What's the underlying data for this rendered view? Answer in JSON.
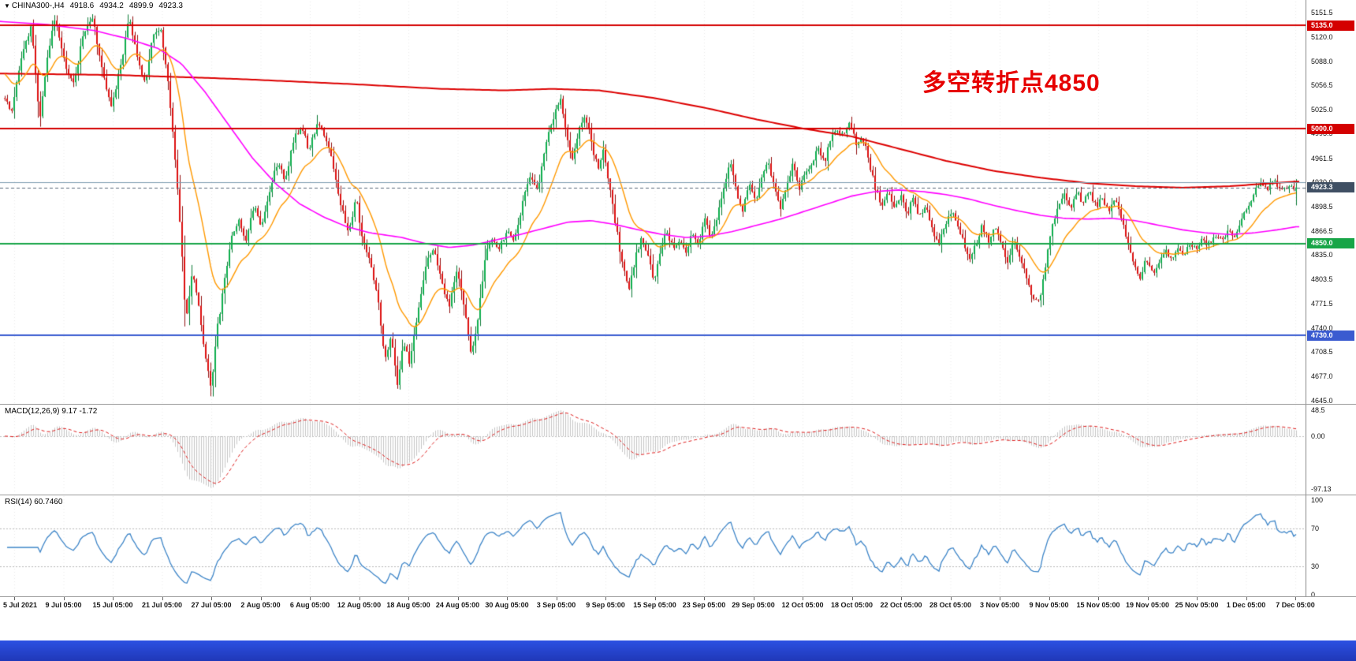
{
  "app": {
    "background": "#ffffff",
    "taskbar_color": "#2b50e2"
  },
  "symbol_info": {
    "marker": "▼",
    "symbol": "CHINA300-,H4",
    "open": "4918.6",
    "high": "4934.2",
    "low": "4899.9",
    "close": "4923.3"
  },
  "annotation": {
    "text": "多空转折点4850",
    "color": "#e60000"
  },
  "chart_data": {
    "type": "candlestick",
    "title": "CHINA300- H4",
    "last_candle": {
      "open": 4918.6,
      "high": 4934.2,
      "low": 4899.9,
      "close": 4923.3
    },
    "y_axis": {
      "min": 4645.0,
      "max": 5151.5,
      "labels": [
        "5151.5",
        "5120.0",
        "5088.0",
        "5056.5",
        "5025.0",
        "4993.5",
        "4961.5",
        "4930.0",
        "4898.5",
        "4866.5",
        "4835.0",
        "4803.5",
        "4771.5",
        "4740.0",
        "4708.5",
        "4677.0",
        "4645.0"
      ]
    },
    "x_axis": {
      "labels": [
        "5 Jul 2021",
        "9 Jul 05:00",
        "15 Jul 05:00",
        "21 Jul 05:00",
        "27 Jul 05:00",
        "2 Aug 05:00",
        "6 Aug 05:00",
        "12 Aug 05:00",
        "18 Aug 05:00",
        "24 Aug 05:00",
        "30 Aug 05:00",
        "3 Sep 05:00",
        "9 Sep 05:00",
        "15 Sep 05:00",
        "23 Sep 05:00",
        "29 Sep 05:00",
        "12 Oct 05:00",
        "18 Oct 05:00",
        "22 Oct 05:00",
        "28 Oct 05:00",
        "3 Nov 05:00",
        "9 Nov 05:00",
        "15 Nov 05:00",
        "19 Nov 05:00",
        "25 Nov 05:00",
        "1 Dec 05:00",
        "7 Dec 05:00"
      ]
    },
    "close_path": [
      [
        0,
        5060
      ],
      [
        14,
        5020
      ],
      [
        28,
        5095
      ],
      [
        40,
        5135
      ],
      [
        50,
        5008
      ],
      [
        60,
        5090
      ],
      [
        70,
        5148
      ],
      [
        82,
        5085
      ],
      [
        94,
        5058
      ],
      [
        106,
        5128
      ],
      [
        118,
        5142
      ],
      [
        130,
        5072
      ],
      [
        142,
        5028
      ],
      [
        154,
        5088
      ],
      [
        164,
        5148
      ],
      [
        174,
        5092
      ],
      [
        184,
        5058
      ],
      [
        194,
        5122
      ],
      [
        204,
        5130
      ],
      [
        212,
        5070
      ],
      [
        220,
        4985
      ],
      [
        228,
        4880
      ],
      [
        236,
        4748
      ],
      [
        244,
        4818
      ],
      [
        252,
        4772
      ],
      [
        260,
        4705
      ],
      [
        268,
        4662
      ],
      [
        276,
        4742
      ],
      [
        284,
        4795
      ],
      [
        292,
        4852
      ],
      [
        302,
        4882
      ],
      [
        312,
        4850
      ],
      [
        322,
        4902
      ],
      [
        332,
        4872
      ],
      [
        342,
        4918
      ],
      [
        352,
        4958
      ],
      [
        362,
        4930
      ],
      [
        372,
        4985
      ],
      [
        382,
        5002
      ],
      [
        392,
        4972
      ],
      [
        402,
        5006
      ],
      [
        412,
        4992
      ],
      [
        422,
        4955
      ],
      [
        432,
        4898
      ],
      [
        442,
        4868
      ],
      [
        452,
        4908
      ],
      [
        460,
        4852
      ],
      [
        468,
        4828
      ],
      [
        478,
        4788
      ],
      [
        488,
        4700
      ],
      [
        496,
        4726
      ],
      [
        504,
        4668
      ],
      [
        512,
        4722
      ],
      [
        520,
        4692
      ],
      [
        530,
        4762
      ],
      [
        540,
        4822
      ],
      [
        550,
        4846
      ],
      [
        560,
        4798
      ],
      [
        570,
        4768
      ],
      [
        580,
        4820
      ],
      [
        590,
        4758
      ],
      [
        598,
        4706
      ],
      [
        606,
        4748
      ],
      [
        614,
        4822
      ],
      [
        622,
        4858
      ],
      [
        632,
        4840
      ],
      [
        642,
        4866
      ],
      [
        652,
        4854
      ],
      [
        662,
        4898
      ],
      [
        672,
        4940
      ],
      [
        682,
        4918
      ],
      [
        692,
        4980
      ],
      [
        702,
        5012
      ],
      [
        710,
        5042
      ],
      [
        718,
        4998
      ],
      [
        726,
        4958
      ],
      [
        734,
        5000
      ],
      [
        742,
        5018
      ],
      [
        750,
        4982
      ],
      [
        758,
        4948
      ],
      [
        766,
        4972
      ],
      [
        774,
        4918
      ],
      [
        782,
        4868
      ],
      [
        790,
        4818
      ],
      [
        798,
        4792
      ],
      [
        806,
        4832
      ],
      [
        814,
        4858
      ],
      [
        822,
        4832
      ],
      [
        830,
        4802
      ],
      [
        838,
        4846
      ],
      [
        846,
        4864
      ],
      [
        854,
        4844
      ],
      [
        862,
        4856
      ],
      [
        870,
        4838
      ],
      [
        878,
        4864
      ],
      [
        886,
        4852
      ],
      [
        894,
        4880
      ],
      [
        902,
        4858
      ],
      [
        910,
        4886
      ],
      [
        918,
        4922
      ],
      [
        926,
        4958
      ],
      [
        934,
        4918
      ],
      [
        942,
        4894
      ],
      [
        950,
        4930
      ],
      [
        958,
        4904
      ],
      [
        966,
        4934
      ],
      [
        974,
        4958
      ],
      [
        982,
        4924
      ],
      [
        990,
        4898
      ],
      [
        998,
        4930
      ],
      [
        1006,
        4954
      ],
      [
        1014,
        4924
      ],
      [
        1022,
        4942
      ],
      [
        1030,
        4956
      ],
      [
        1038,
        4974
      ],
      [
        1046,
        4958
      ],
      [
        1054,
        4986
      ],
      [
        1062,
        5000
      ],
      [
        1070,
        4992
      ],
      [
        1078,
        5012
      ],
      [
        1086,
        4976
      ],
      [
        1094,
        4990
      ],
      [
        1102,
        4958
      ],
      [
        1110,
        4924
      ],
      [
        1118,
        4898
      ],
      [
        1126,
        4920
      ],
      [
        1134,
        4894
      ],
      [
        1142,
        4914
      ],
      [
        1150,
        4888
      ],
      [
        1158,
        4908
      ],
      [
        1166,
        4884
      ],
      [
        1174,
        4898
      ],
      [
        1182,
        4868
      ],
      [
        1190,
        4848
      ],
      [
        1198,
        4870
      ],
      [
        1206,
        4892
      ],
      [
        1214,
        4878
      ],
      [
        1222,
        4852
      ],
      [
        1230,
        4828
      ],
      [
        1238,
        4850
      ],
      [
        1246,
        4874
      ],
      [
        1254,
        4854
      ],
      [
        1262,
        4874
      ],
      [
        1270,
        4848
      ],
      [
        1278,
        4828
      ],
      [
        1286,
        4854
      ],
      [
        1294,
        4834
      ],
      [
        1302,
        4808
      ],
      [
        1310,
        4780
      ],
      [
        1318,
        4772
      ],
      [
        1326,
        4822
      ],
      [
        1334,
        4868
      ],
      [
        1342,
        4898
      ],
      [
        1350,
        4918
      ],
      [
        1358,
        4898
      ],
      [
        1366,
        4918
      ],
      [
        1374,
        4902
      ],
      [
        1382,
        4918
      ],
      [
        1390,
        4898
      ],
      [
        1398,
        4912
      ],
      [
        1406,
        4892
      ],
      [
        1414,
        4908
      ],
      [
        1422,
        4884
      ],
      [
        1430,
        4854
      ],
      [
        1438,
        4824
      ],
      [
        1446,
        4806
      ],
      [
        1454,
        4830
      ],
      [
        1462,
        4812
      ],
      [
        1470,
        4822
      ],
      [
        1478,
        4842
      ],
      [
        1486,
        4826
      ],
      [
        1494,
        4846
      ],
      [
        1502,
        4836
      ],
      [
        1510,
        4852
      ],
      [
        1518,
        4842
      ],
      [
        1526,
        4856
      ],
      [
        1534,
        4848
      ],
      [
        1542,
        4862
      ],
      [
        1550,
        4854
      ],
      [
        1558,
        4870
      ],
      [
        1566,
        4860
      ],
      [
        1574,
        4882
      ],
      [
        1582,
        4898
      ],
      [
        1590,
        4916
      ],
      [
        1598,
        4930
      ],
      [
        1606,
        4920
      ],
      [
        1614,
        4932
      ],
      [
        1622,
        4926
      ],
      [
        1632,
        4923.3
      ]
    ],
    "horizontal_lines": [
      {
        "price": 5135.0,
        "color": "#d40000",
        "width": 2,
        "tag": "5135.0",
        "tag_bg": "#d40000"
      },
      {
        "price": 5000.0,
        "color": "#d40000",
        "width": 2,
        "tag": "5000.0",
        "tag_bg": "#d40000"
      },
      {
        "price": 4930.0,
        "color": "#7c9cb0",
        "width": 1
      },
      {
        "price": 4923.3,
        "color": "#5a6a7a",
        "width": 1,
        "dash": true,
        "tag": "4923.3",
        "tag_bg": "#3f4f63"
      },
      {
        "price": 4850.0,
        "color": "#17a547",
        "width": 2,
        "tag": "4850.0",
        "tag_bg": "#17a547"
      },
      {
        "price": 4730.0,
        "color": "#3a5bd0",
        "width": 2,
        "tag": "4730.0",
        "tag_bg": "#3a5bd0"
      }
    ],
    "moving_averages": [
      {
        "name": "ma-slow",
        "color": "#dd0000",
        "path": [
          [
            0,
            5072
          ],
          [
            150,
            5070
          ],
          [
            300,
            5065
          ],
          [
            450,
            5058
          ],
          [
            560,
            5052
          ],
          [
            640,
            5050
          ],
          [
            700,
            5052
          ],
          [
            760,
            5050
          ],
          [
            830,
            5040
          ],
          [
            900,
            5026
          ],
          [
            960,
            5012
          ],
          [
            1020,
            5000
          ],
          [
            1080,
            4990
          ],
          [
            1140,
            4974
          ],
          [
            1200,
            4958
          ],
          [
            1260,
            4945
          ],
          [
            1320,
            4936
          ],
          [
            1380,
            4929
          ],
          [
            1440,
            4925
          ],
          [
            1500,
            4923
          ],
          [
            1560,
            4925
          ],
          [
            1644,
            4931
          ]
        ]
      },
      {
        "name": "ma-mid",
        "color": "#ff00ff",
        "path": [
          [
            0,
            5140
          ],
          [
            60,
            5136
          ],
          [
            120,
            5128
          ],
          [
            160,
            5118
          ],
          [
            200,
            5105
          ],
          [
            230,
            5085
          ],
          [
            260,
            5048
          ],
          [
            290,
            5005
          ],
          [
            320,
            4962
          ],
          [
            350,
            4928
          ],
          [
            380,
            4902
          ],
          [
            410,
            4885
          ],
          [
            440,
            4872
          ],
          [
            470,
            4864
          ],
          [
            510,
            4858
          ],
          [
            540,
            4850
          ],
          [
            570,
            4845
          ],
          [
            600,
            4848
          ],
          [
            630,
            4855
          ],
          [
            660,
            4862
          ],
          [
            690,
            4870
          ],
          [
            720,
            4878
          ],
          [
            750,
            4880
          ],
          [
            780,
            4875
          ],
          [
            810,
            4868
          ],
          [
            840,
            4862
          ],
          [
            870,
            4858
          ],
          [
            900,
            4860
          ],
          [
            930,
            4866
          ],
          [
            960,
            4874
          ],
          [
            990,
            4882
          ],
          [
            1020,
            4892
          ],
          [
            1050,
            4902
          ],
          [
            1080,
            4912
          ],
          [
            1110,
            4918
          ],
          [
            1140,
            4920
          ],
          [
            1170,
            4918
          ],
          [
            1200,
            4914
          ],
          [
            1230,
            4908
          ],
          [
            1260,
            4900
          ],
          [
            1290,
            4893
          ],
          [
            1320,
            4887
          ],
          [
            1350,
            4883
          ],
          [
            1380,
            4882
          ],
          [
            1410,
            4883
          ],
          [
            1440,
            4880
          ],
          [
            1470,
            4874
          ],
          [
            1500,
            4868
          ],
          [
            1530,
            4864
          ],
          [
            1560,
            4862
          ],
          [
            1590,
            4864
          ],
          [
            1620,
            4868
          ],
          [
            1644,
            4872
          ]
        ]
      },
      {
        "name": "ma-fast",
        "color": "#ff9900",
        "period": 20,
        "start": 5075
      }
    ],
    "candle_colors": {
      "up": "#0fae4e",
      "up_border": "#0a7a35",
      "down": "#dd1111",
      "down_border": "#921111"
    },
    "indicators": {
      "macd": {
        "header": "MACD(12,26,9) 9.17 -1.72",
        "fast": 12,
        "slow": 26,
        "signal": 9,
        "last_macd": 9.17,
        "last_signal": -1.72,
        "axis_labels": [
          "48.5",
          "0.00",
          "-97.13"
        ],
        "histogram_color": "#c6c6c6",
        "signal_color": "#e02020"
      },
      "rsi": {
        "header": "RSI(14) 60.7460",
        "period": 14,
        "last": 60.746,
        "axis_labels": [
          "100",
          "70",
          "30",
          "0"
        ],
        "levels": [
          70,
          30
        ],
        "line_color": "#3d85c8"
      }
    }
  }
}
